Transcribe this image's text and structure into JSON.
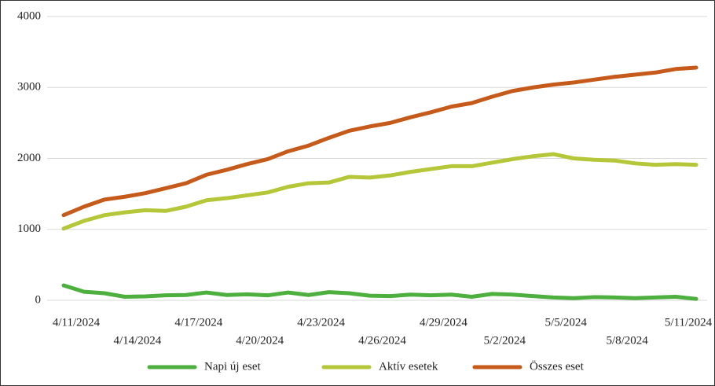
{
  "chart_data": {
    "type": "line",
    "categories": [
      "4/11/2024",
      null,
      null,
      "4/14/2024",
      null,
      null,
      "4/17/2024",
      null,
      null,
      "4/20/2024",
      null,
      null,
      "4/23/2024",
      null,
      null,
      "4/26/2024",
      null,
      null,
      "4/29/2024",
      null,
      null,
      "5/2/2024",
      null,
      null,
      "5/5/2024",
      null,
      null,
      "5/8/2024",
      null,
      null,
      "5/11/2024",
      null
    ],
    "series": [
      {
        "name": "Napi új eset",
        "color": "#4caf3e",
        "values": [
          210,
          120,
          100,
          50,
          55,
          70,
          75,
          110,
          75,
          85,
          70,
          110,
          75,
          115,
          100,
          65,
          60,
          80,
          70,
          80,
          50,
          90,
          80,
          60,
          40,
          30,
          45,
          40,
          30,
          40,
          50,
          20
        ]
      },
      {
        "name": "Aktív esetek",
        "color": "#b5c738",
        "values": [
          1010,
          1120,
          1200,
          1240,
          1270,
          1260,
          1320,
          1410,
          1440,
          1480,
          1520,
          1600,
          1650,
          1660,
          1740,
          1730,
          1760,
          1810,
          1850,
          1890,
          1890,
          1940,
          1990,
          2030,
          2060,
          2000,
          1980,
          1970,
          1930,
          1910,
          1920,
          1910
        ]
      },
      {
        "name": "Összes eset",
        "color": "#c55a1a",
        "values": [
          1200,
          1320,
          1420,
          1460,
          1510,
          1580,
          1650,
          1770,
          1840,
          1920,
          1990,
          2100,
          2180,
          2290,
          2390,
          2450,
          2500,
          2580,
          2650,
          2730,
          2780,
          2870,
          2950,
          3000,
          3040,
          3070,
          3110,
          3150,
          3180,
          3210,
          3260,
          3280
        ]
      }
    ],
    "ylim": [
      0,
      4000
    ],
    "yticks": [
      0,
      1000,
      2000,
      3000,
      4000
    ],
    "grid": true,
    "legend": "bottom"
  }
}
